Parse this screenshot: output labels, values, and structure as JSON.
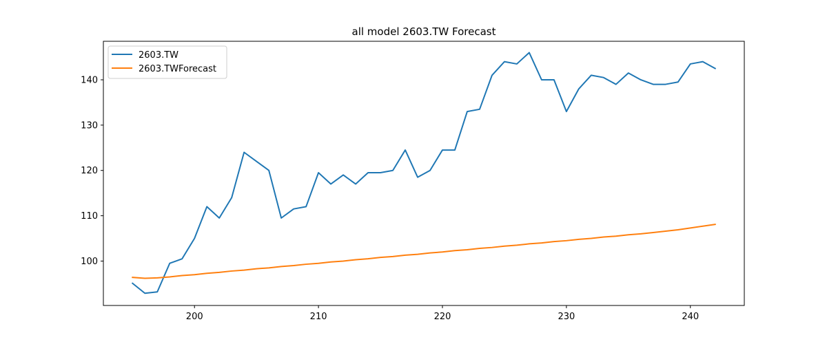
{
  "chart_data": {
    "type": "line",
    "title": "all model 2603.TW Forecast",
    "xlabel": "",
    "ylabel": "",
    "xlim": [
      192.65,
      244.35
    ],
    "ylim": [
      90.2,
      148.5
    ],
    "xticks": [
      200,
      210,
      220,
      230,
      240
    ],
    "yticks": [
      100,
      110,
      120,
      130,
      140
    ],
    "grid": false,
    "legend_position": "top-left",
    "series": [
      {
        "name": "2603.TW",
        "color": "#1f77b4",
        "x": [
          195,
          196,
          197,
          198,
          199,
          200,
          201,
          202,
          203,
          204,
          205,
          206,
          207,
          208,
          209,
          210,
          211,
          212,
          213,
          214,
          215,
          216,
          217,
          218,
          219,
          220,
          221,
          222,
          223,
          224,
          225,
          226,
          227,
          228,
          229,
          230,
          231,
          232,
          233,
          234,
          235,
          236,
          237,
          238,
          239,
          240,
          241,
          242
        ],
        "y": [
          95.1,
          92.9,
          93.2,
          99.5,
          100.5,
          105.0,
          112.0,
          109.5,
          114.0,
          124.0,
          122.0,
          120.0,
          109.5,
          111.5,
          112.0,
          119.5,
          117.0,
          119.0,
          117.0,
          119.5,
          119.5,
          120.0,
          124.5,
          118.5,
          120.0,
          124.5,
          124.5,
          133.0,
          133.5,
          141.0,
          144.0,
          143.5,
          146.0,
          140.0,
          140.0,
          133.0,
          138.0,
          141.0,
          140.5,
          139.0,
          141.5,
          140.0,
          139.0,
          139.0,
          139.5,
          143.5,
          144.0,
          142.5
        ]
      },
      {
        "name": "2603.TWForecast",
        "color": "#ff7f0e",
        "x": [
          195,
          196,
          197,
          198,
          199,
          200,
          201,
          202,
          203,
          204,
          205,
          206,
          207,
          208,
          209,
          210,
          211,
          212,
          213,
          214,
          215,
          216,
          217,
          218,
          219,
          220,
          221,
          222,
          223,
          224,
          225,
          226,
          227,
          228,
          229,
          230,
          231,
          232,
          233,
          234,
          235,
          236,
          237,
          238,
          239,
          240,
          241,
          242
        ],
        "y": [
          96.4,
          96.2,
          96.3,
          96.5,
          96.8,
          97.0,
          97.3,
          97.5,
          97.8,
          98.0,
          98.3,
          98.5,
          98.8,
          99.0,
          99.3,
          99.5,
          99.8,
          100.0,
          100.3,
          100.5,
          100.8,
          101.0,
          101.3,
          101.5,
          101.8,
          102.0,
          102.3,
          102.5,
          102.8,
          103.0,
          103.3,
          103.5,
          103.8,
          104.0,
          104.3,
          104.5,
          104.8,
          105.0,
          105.3,
          105.5,
          105.8,
          106.0,
          106.3,
          106.6,
          106.9,
          107.3,
          107.7,
          108.1
        ]
      }
    ]
  }
}
